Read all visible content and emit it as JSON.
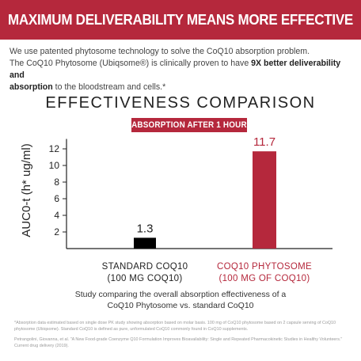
{
  "banner": {
    "title": "MAXIMUM DELIVERABILITY MEANS MORE EFFECTIVE"
  },
  "intro": {
    "line1": "We use patented phytosome technology to solve the CoQ10 absorption problem.",
    "line2_pre": "The CoQ10 Phytosome (Ubiqsome®) is clinically proven to have ",
    "line2_bold": "9X better deliverability and",
    "line3_bold": "absorption",
    "line3_post": " to the bloodstream and cells.*"
  },
  "colors": {
    "accent": "#b5283c",
    "bar_standard": "#000000",
    "bar_phytosome": "#b5283c"
  },
  "chart_data": {
    "type": "bar",
    "title": "EFFECTIVENESS COMPARISON",
    "subtitle": "ABSORPTION AFTER 1 HOUR",
    "ylabel": "AUC0-t (h* ug/ml)",
    "xlabel": "",
    "yticks": [
      2,
      4,
      6,
      8,
      10,
      12
    ],
    "ylim": [
      0,
      13
    ],
    "categories": [
      {
        "line1": "STANDARD COQ10",
        "line2": "(100 MG COQ10)",
        "color": "#000000",
        "label_color": "#222222"
      },
      {
        "line1": "COQ10 PHYTOSOME",
        "line2": "(100 MG OF COQ10)",
        "color": "#b5283c",
        "label_color": "#b5283c"
      }
    ],
    "values": [
      1.3,
      11.7
    ],
    "value_labels": [
      "1.3",
      "11.7"
    ],
    "grid": false,
    "legend": "none"
  },
  "caption": {
    "line1": "Study comparing the overall absorption effectiveness of a",
    "line2": "CoQ10 Phytosome vs. standard CoQ10"
  },
  "footnotes": {
    "note1": "*Absorption data estimated based on single dose PK study showing absorption based on molar basis. 100 mg of CoQ10 phytosome based on 2 capsule serving of CoQ10 phytosome (Ubiqsome). Standard CoQ10 is defined as pure, unformulated CoQ10 commonly found in CoQ10 supplements.",
    "note2": "Petrangolini, Giovanna, et al. \"A New Food-grade Coenzyme Q10 Formulation Improves Bioavailability: Single and Repeated Pharmacokinetic Studies in Healthy Volunteers.\" Current drug delivery (2019)."
  }
}
